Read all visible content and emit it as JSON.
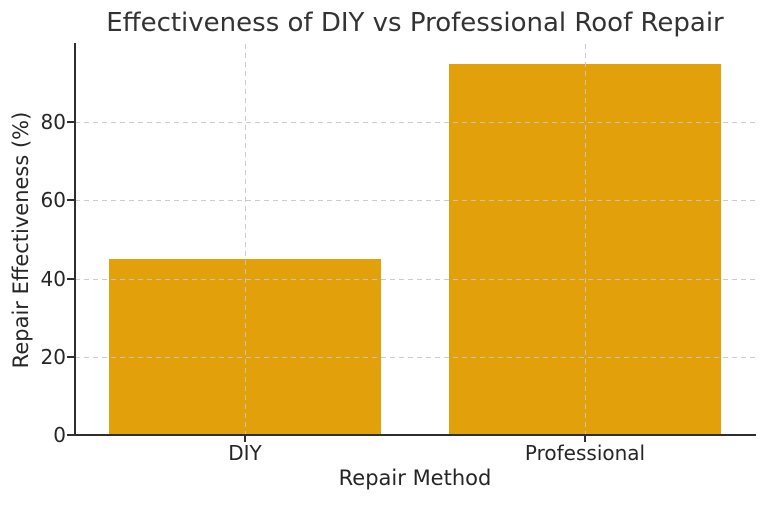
{
  "chart_data": {
    "type": "bar",
    "title": "Effectiveness of DIY vs Professional Roof Repair",
    "xlabel": "Repair Method",
    "ylabel": "Repair Effectiveness (%)",
    "categories": [
      "DIY",
      "Professional"
    ],
    "values": [
      45,
      95
    ],
    "ylim": [
      0,
      100
    ],
    "yticks": [
      0,
      20,
      40,
      60,
      80
    ],
    "bar_width_fraction": 0.8,
    "grid": true,
    "legend": "none",
    "colors": {
      "bar_fill": "#e2a00a",
      "grid_line": "#cbcbcb",
      "spine": "#2e2e2e",
      "text": "#262626",
      "title_text": "#333333",
      "background": "#ffffff"
    }
  }
}
